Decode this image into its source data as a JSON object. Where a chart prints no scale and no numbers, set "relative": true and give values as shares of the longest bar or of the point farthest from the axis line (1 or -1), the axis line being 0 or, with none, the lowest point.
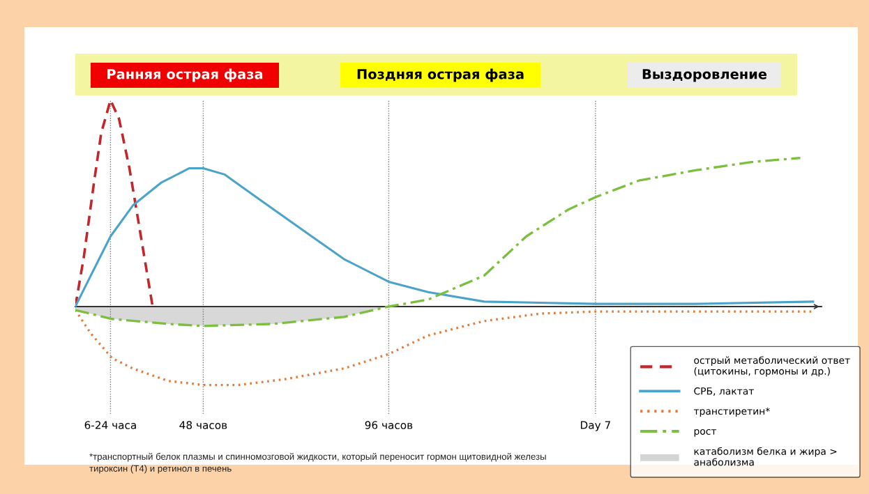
{
  "chart_data": {
    "type": "line",
    "relative": true,
    "xlim": [
      14.9,
      208
    ],
    "xticks": [
      {
        "value": 24,
        "label": "6-24 часа"
      },
      {
        "value": 48,
        "label": "48 часов"
      },
      {
        "value": 96,
        "label": "96 часов"
      },
      {
        "value": 149.5,
        "label": "Day 7"
      }
    ],
    "tick_labels": "x",
    "series": [
      {
        "name": "острый метаболический ответ (цитокины, гормоны и др.)",
        "color": "#c0282d",
        "line_style": "dashed",
        "x": [
          14.9,
          17.1,
          19.8,
          21.6,
          24.0,
          26.2,
          28.9,
          31.6,
          34.9
        ],
        "values": [
          0,
          0.24,
          0.61,
          0.84,
          1,
          0.91,
          0.67,
          0.37,
          0
        ]
      },
      {
        "name": "СРБ, лактат",
        "color": "#4ba3c7",
        "line_style": "solid",
        "x": [
          14.9,
          18.9,
          24.0,
          29.8,
          37.1,
          44.4,
          48.0,
          53.5,
          62.5,
          75.3,
          84.4,
          96.0,
          106.2,
          120.7,
          149.5,
          175.3,
          205.8
        ],
        "values": [
          0,
          0.15,
          0.34,
          0.49,
          0.6,
          0.67,
          0.67,
          0.64,
          0.52,
          0.35,
          0.23,
          0.12,
          0.07,
          0.024,
          0.013,
          0.013,
          0.024
        ]
      },
      {
        "name": "транстиретин*",
        "color": "#e07b39",
        "line_style": "dotted",
        "x": [
          14.9,
          18.9,
          24.4,
          29.8,
          38.9,
          48.0,
          57.1,
          69.8,
          84.4,
          96.0,
          106.2,
          120.7,
          135.3,
          149.5,
          205.8
        ],
        "values": [
          -0.017,
          -0.13,
          -0.25,
          -0.3,
          -0.36,
          -0.38,
          -0.38,
          -0.35,
          -0.3,
          -0.23,
          -0.14,
          -0.07,
          -0.034,
          -0.024,
          -0.024
        ]
      },
      {
        "name": "рост",
        "color": "#7cbf3f",
        "line_style": "dashdot",
        "x": [
          14.9,
          24.4,
          38.9,
          48.0,
          66.2,
          84.4,
          96.0,
          106.2,
          120.7,
          131.6,
          142.5,
          149.5,
          160.7,
          175.3,
          189.8,
          202.5
        ],
        "values": [
          -0.017,
          -0.06,
          -0.084,
          -0.094,
          -0.084,
          -0.05,
          0,
          0.034,
          0.15,
          0.34,
          0.47,
          0.53,
          0.61,
          0.66,
          0.7,
          0.72
        ]
      },
      {
        "name": "катаболизм белка и жира > анаболизма",
        "type": "area",
        "color": "#d4d4d4",
        "x": [
          14.9,
          24.4,
          38.9,
          48.0,
          66.2,
          84.4,
          96.0
        ],
        "values": [
          -0.017,
          -0.06,
          -0.084,
          -0.094,
          -0.084,
          -0.05,
          0
        ]
      }
    ],
    "ref_lines": [
      {
        "axis": "x",
        "value": 24
      },
      {
        "axis": "x",
        "value": 48
      },
      {
        "axis": "x",
        "value": 96
      },
      {
        "axis": "x",
        "value": 149.5
      }
    ],
    "legend": "bottom right",
    "annotations": [
      "Ранняя острая фаза",
      "Поздняя острая фаза",
      "Выздоровление",
      "*транспортный белок плазмы и спинномозговой жидкости, который переносит гормон щитовидной железы\nтироксин (Т4) и ретинол в печень"
    ]
  }
}
